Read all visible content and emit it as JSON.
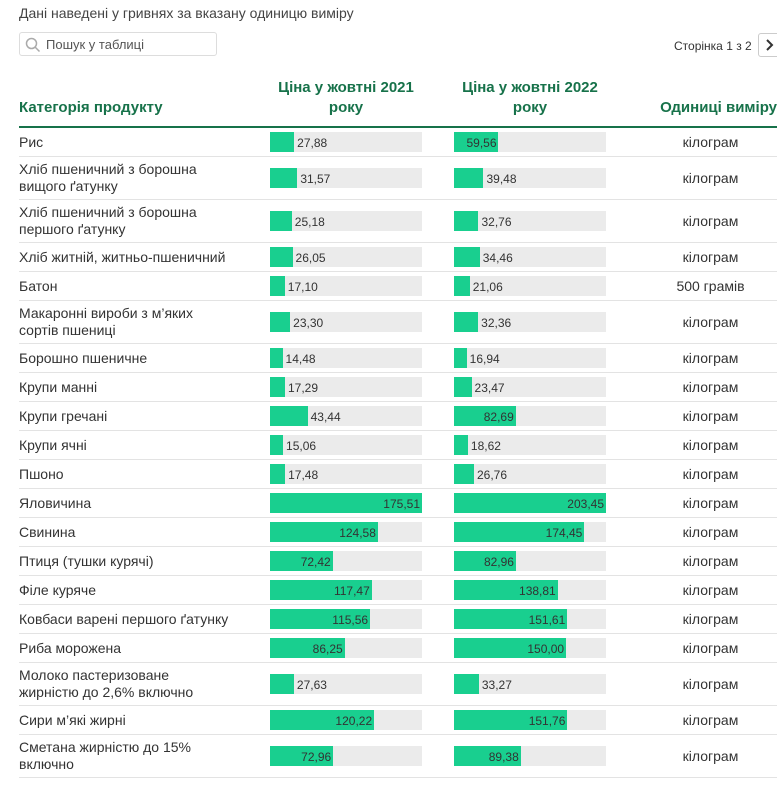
{
  "note": "Дані наведені у гривнях за вказану одиницю виміру",
  "search_placeholder": "Пошук у таблиці",
  "pagination": "Сторінка 1 з 2",
  "table": {
    "columns": [
      "Категорія продукту",
      "Ціна у жовтні 2021 року",
      "Ціна у жовтні 2022 року",
      "Одиниці виміру"
    ],
    "rows": [
      {
        "category": "Рис",
        "price_2021": {
          "value": 27.88,
          "label": "27,88"
        },
        "price_2022": {
          "value": 59.56,
          "label": "59,56"
        },
        "unit": "кілограм"
      },
      {
        "category": "Хліб пшеничний з борошна вищого ґатунку",
        "price_2021": {
          "value": 31.57,
          "label": "31,57"
        },
        "price_2022": {
          "value": 39.48,
          "label": "39,48"
        },
        "unit": "кілограм"
      },
      {
        "category": "Хліб пшеничний з борошна першого ґатунку",
        "price_2021": {
          "value": 25.18,
          "label": "25,18"
        },
        "price_2022": {
          "value": 32.76,
          "label": "32,76"
        },
        "unit": "кілограм"
      },
      {
        "category": "Хліб житній, житньо-пшеничний",
        "price_2021": {
          "value": 26.05,
          "label": "26,05"
        },
        "price_2022": {
          "value": 34.46,
          "label": "34,46"
        },
        "unit": "кілограм"
      },
      {
        "category": "Батон",
        "price_2021": {
          "value": 17.1,
          "label": "17,10"
        },
        "price_2022": {
          "value": 21.06,
          "label": "21,06"
        },
        "unit": "500 грамів"
      },
      {
        "category": "Макаронні вироби з м’яких сортів пшениці",
        "price_2021": {
          "value": 23.3,
          "label": "23,30"
        },
        "price_2022": {
          "value": 32.36,
          "label": "32,36"
        },
        "unit": "кілограм"
      },
      {
        "category": "Борошно пшеничне",
        "price_2021": {
          "value": 14.48,
          "label": "14,48"
        },
        "price_2022": {
          "value": 16.94,
          "label": "16,94"
        },
        "unit": "кілограм"
      },
      {
        "category": "Крупи манні",
        "price_2021": {
          "value": 17.29,
          "label": "17,29"
        },
        "price_2022": {
          "value": 23.47,
          "label": "23,47"
        },
        "unit": "кілограм"
      },
      {
        "category": "Крупи гречані",
        "price_2021": {
          "value": 43.44,
          "label": "43,44"
        },
        "price_2022": {
          "value": 82.69,
          "label": "82,69"
        },
        "unit": "кілограм"
      },
      {
        "category": "Крупи ячні",
        "price_2021": {
          "value": 15.06,
          "label": "15,06"
        },
        "price_2022": {
          "value": 18.62,
          "label": "18,62"
        },
        "unit": "кілограм"
      },
      {
        "category": "Пшоно",
        "price_2021": {
          "value": 17.48,
          "label": "17,48"
        },
        "price_2022": {
          "value": 26.76,
          "label": "26,76"
        },
        "unit": "кілограм"
      },
      {
        "category": "Яловичина",
        "price_2021": {
          "value": 175.51,
          "label": "175,51"
        },
        "price_2022": {
          "value": 203.45,
          "label": "203,45"
        },
        "unit": "кілограм"
      },
      {
        "category": "Свинина",
        "price_2021": {
          "value": 124.58,
          "label": "124,58"
        },
        "price_2022": {
          "value": 174.45,
          "label": "174,45"
        },
        "unit": "кілограм"
      },
      {
        "category": "Птиця (тушки курячі)",
        "price_2021": {
          "value": 72.42,
          "label": "72,42"
        },
        "price_2022": {
          "value": 82.96,
          "label": "82,96"
        },
        "unit": "кілограм"
      },
      {
        "category": "Філе куряче",
        "price_2021": {
          "value": 117.47,
          "label": "117,47"
        },
        "price_2022": {
          "value": 138.81,
          "label": "138,81"
        },
        "unit": "кілограм"
      },
      {
        "category": "Ковбаси варені першого ґатунку",
        "price_2021": {
          "value": 115.56,
          "label": "115,56"
        },
        "price_2022": {
          "value": 151.61,
          "label": "151,61"
        },
        "unit": "кілограм"
      },
      {
        "category": "Риба морожена",
        "price_2021": {
          "value": 86.25,
          "label": "86,25"
        },
        "price_2022": {
          "value": 150.0,
          "label": "150,00"
        },
        "unit": "кілограм"
      },
      {
        "category": "Молоко пастеризоване жирністю до 2,6% включно",
        "price_2021": {
          "value": 27.63,
          "label": "27,63"
        },
        "price_2022": {
          "value": 33.27,
          "label": "33,27"
        },
        "unit": "кілограм"
      },
      {
        "category": "Сири м’які жирні",
        "price_2021": {
          "value": 120.22,
          "label": "120,22"
        },
        "price_2022": {
          "value": 151.76,
          "label": "151,76"
        },
        "unit": "кілограм"
      },
      {
        "category": "Сметана жирністю до 15% включно",
        "price_2021": {
          "value": 72.96,
          "label": "72,96"
        },
        "price_2022": {
          "value": 89.38,
          "label": "89,38"
        },
        "unit": "кілограм"
      }
    ]
  }
}
